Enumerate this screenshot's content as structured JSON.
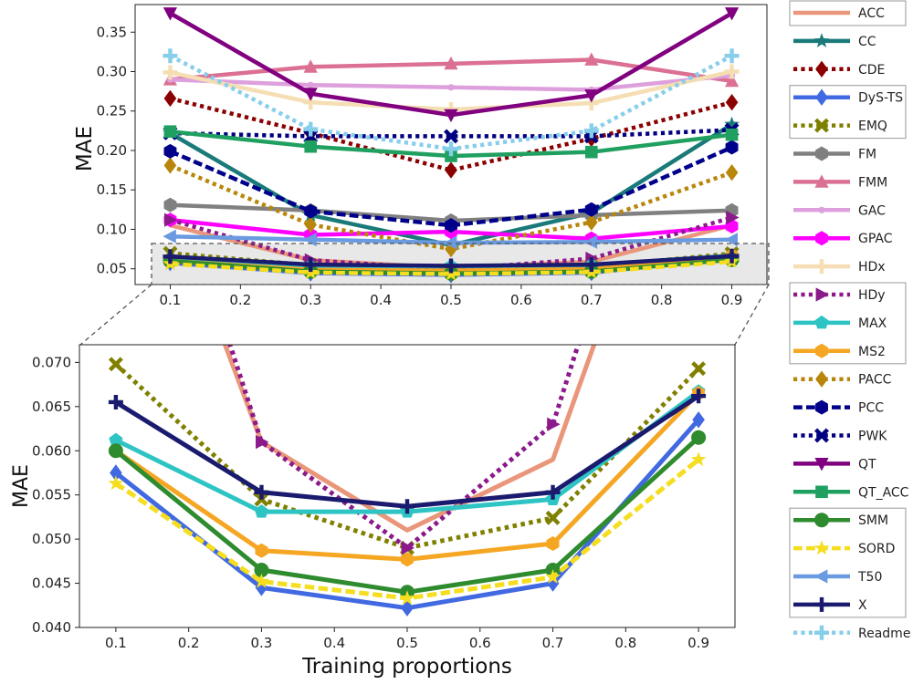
{
  "chart_data": [
    {
      "type": "line",
      "panel": "main",
      "xlabel": "",
      "ylabel": "MAE",
      "x": [
        0.1,
        0.3,
        0.5,
        0.7,
        0.9
      ],
      "xlim": [
        0.05,
        0.95
      ],
      "ylim": [
        0.03,
        0.385
      ],
      "xticks": [
        0.1,
        0.2,
        0.3,
        0.4,
        0.5,
        0.6,
        0.7,
        0.8,
        0.9
      ],
      "yticks": [
        0.05,
        0.1,
        0.15,
        0.2,
        0.25,
        0.3,
        0.35
      ],
      "grid": false,
      "legend_position": "right, outside",
      "zoom_box_ylim": [
        0.038,
        0.072
      ],
      "series": [
        {
          "name": "ACC",
          "color": "#e9967a",
          "dash": "solid",
          "marker": "none",
          "values": [
            0.105,
            0.061,
            0.051,
            0.059,
            0.105
          ]
        },
        {
          "name": "CC",
          "color": "#1a7a7a",
          "dash": "solid",
          "marker": "star",
          "values": [
            0.222,
            0.118,
            0.08,
            0.121,
            0.233
          ]
        },
        {
          "name": "CDE",
          "color": "#8b0000",
          "dash": "dotted",
          "marker": "diamond",
          "values": [
            0.266,
            0.222,
            0.175,
            0.215,
            0.261
          ]
        },
        {
          "name": "DyS-TS",
          "color": "#4169e1",
          "dash": "solid",
          "marker": "diamond",
          "values": [
            0.0575,
            0.0445,
            0.0422,
            0.045,
            0.0635
          ]
        },
        {
          "name": "EMQ",
          "color": "#808000",
          "dash": "dotted",
          "marker": "x",
          "values": [
            0.0698,
            0.0545,
            0.049,
            0.0524,
            0.0693
          ]
        },
        {
          "name": "FM",
          "color": "#808080",
          "dash": "solid",
          "marker": "hexagon",
          "values": [
            0.131,
            0.124,
            0.111,
            0.118,
            0.124
          ]
        },
        {
          "name": "FMM",
          "color": "#db7093",
          "dash": "solid",
          "marker": "triangle-up",
          "values": [
            0.29,
            0.306,
            0.31,
            0.315,
            0.288
          ]
        },
        {
          "name": "GAC",
          "color": "#dda0dd",
          "dash": "solid",
          "marker": "point",
          "values": [
            0.29,
            0.283,
            0.28,
            0.277,
            0.295
          ]
        },
        {
          "name": "GPAC",
          "color": "#ff00ff",
          "dash": "solid",
          "marker": "hexagon",
          "values": [
            0.112,
            0.093,
            0.097,
            0.088,
            0.104
          ]
        },
        {
          "name": "HDx",
          "color": "#f5deb3",
          "dash": "solid",
          "marker": "plus",
          "values": [
            0.299,
            0.261,
            0.252,
            0.26,
            0.3
          ]
        },
        {
          "name": "HDy",
          "color": "#8b1a8b",
          "dash": "dotted",
          "marker": "triangle-right",
          "values": [
            0.112,
            0.061,
            0.049,
            0.063,
            0.115
          ]
        },
        {
          "name": "MAX",
          "color": "#2ec4c4",
          "dash": "solid",
          "marker": "pentagon",
          "values": [
            0.0612,
            0.0531,
            0.0531,
            0.0545,
            0.0667
          ]
        },
        {
          "name": "MS2",
          "color": "#f5a623",
          "dash": "solid",
          "marker": "hexagon",
          "values": [
            0.06,
            0.0487,
            0.0477,
            0.0495,
            0.0665
          ]
        },
        {
          "name": "PACC",
          "color": "#b8860b",
          "dash": "dotted",
          "marker": "diamond",
          "values": [
            0.181,
            0.106,
            0.075,
            0.109,
            0.172
          ]
        },
        {
          "name": "PCC",
          "color": "#00008b",
          "dash": "dashed",
          "marker": "hexagon",
          "values": [
            0.199,
            0.123,
            0.105,
            0.125,
            0.204
          ]
        },
        {
          "name": "PWK",
          "color": "#000080",
          "dash": "dotted",
          "marker": "x",
          "values": [
            0.222,
            0.218,
            0.218,
            0.218,
            0.226
          ]
        },
        {
          "name": "QT",
          "color": "#800080",
          "dash": "solid",
          "marker": "triangle-down",
          "values": [
            0.374,
            0.272,
            0.245,
            0.27,
            0.374
          ]
        },
        {
          "name": "QT_ACC",
          "color": "#20a060",
          "dash": "solid",
          "marker": "square",
          "values": [
            0.224,
            0.205,
            0.193,
            0.198,
            0.22
          ]
        },
        {
          "name": "SMM",
          "color": "#2e8b2e",
          "dash": "solid",
          "marker": "circle",
          "values": [
            0.06,
            0.0465,
            0.044,
            0.0465,
            0.0615
          ]
        },
        {
          "name": "SORD",
          "color": "#f5dd20",
          "dash": "dashed",
          "marker": "star",
          "values": [
            0.0563,
            0.0452,
            0.0433,
            0.0457,
            0.059
          ]
        },
        {
          "name": "T50",
          "color": "#6a9be0",
          "dash": "solid",
          "marker": "triangle-left",
          "values": [
            0.091,
            0.087,
            0.083,
            0.084,
            0.087
          ]
        },
        {
          "name": "X",
          "color": "#1a1a6e",
          "dash": "solid",
          "marker": "plus",
          "values": [
            0.0655,
            0.0553,
            0.0537,
            0.0553,
            0.0662
          ]
        },
        {
          "name": "Readme",
          "color": "#87ceeb",
          "dash": "dotted",
          "marker": "plus",
          "values": [
            0.32,
            0.227,
            0.202,
            0.225,
            0.32
          ]
        }
      ]
    },
    {
      "type": "line",
      "panel": "zoom",
      "xlabel": "Training proportions",
      "ylabel": "MAE",
      "x": [
        0.1,
        0.3,
        0.5,
        0.7,
        0.9
      ],
      "xlim": [
        0.05,
        0.95
      ],
      "ylim": [
        0.04,
        0.072
      ],
      "xticks": [
        0.1,
        0.2,
        0.3,
        0.4,
        0.5,
        0.6,
        0.7,
        0.8,
        0.9
      ],
      "yticks": [
        0.04,
        0.045,
        0.05,
        0.055,
        0.06,
        0.065,
        0.07
      ],
      "grid": false,
      "series_ref": "same as main panel"
    }
  ],
  "legend": {
    "entries": [
      "ACC",
      "CC",
      "CDE",
      "DyS-TS",
      "EMQ",
      "FM",
      "FMM",
      "GAC",
      "GPAC",
      "HDx",
      "HDy",
      "MAX",
      "MS2",
      "PACC",
      "PCC",
      "PWK",
      "QT",
      "QT_ACC",
      "SMM",
      "SORD",
      "T50",
      "X",
      "Readme"
    ],
    "boxed_groups": [
      [
        0,
        0
      ],
      [
        3,
        4
      ],
      [
        10,
        12
      ],
      [
        18,
        21
      ]
    ]
  }
}
